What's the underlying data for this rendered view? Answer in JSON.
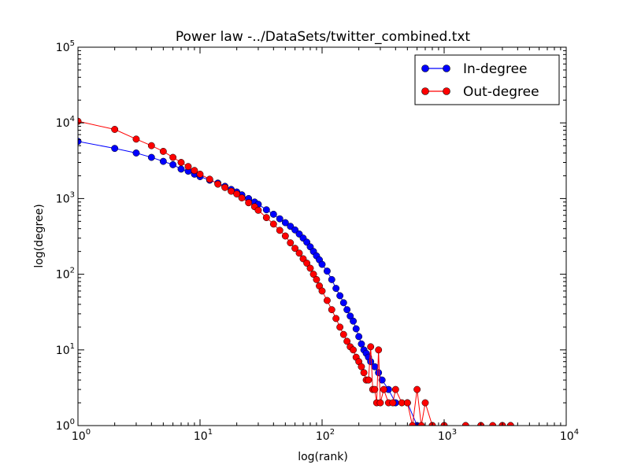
{
  "chart_data": {
    "type": "line",
    "title": "Power law -../DataSets/twitter_combined.txt",
    "xlabel": "log(rank)",
    "ylabel": "log(degree)",
    "xscale": "log",
    "yscale": "log",
    "xlim": [
      1,
      10000
    ],
    "ylim": [
      1,
      100000
    ],
    "x_ticks": [
      {
        "value": 1,
        "base": "10",
        "exp": "0"
      },
      {
        "value": 10,
        "base": "10",
        "exp": "1"
      },
      {
        "value": 100,
        "base": "10",
        "exp": "2"
      },
      {
        "value": 1000,
        "base": "10",
        "exp": "3"
      },
      {
        "value": 10000,
        "base": "10",
        "exp": "4"
      }
    ],
    "y_ticks": [
      {
        "value": 1,
        "base": "10",
        "exp": "0"
      },
      {
        "value": 10,
        "base": "10",
        "exp": "1"
      },
      {
        "value": 100,
        "base": "10",
        "exp": "2"
      },
      {
        "value": 1000,
        "base": "10",
        "exp": "3"
      },
      {
        "value": 10000,
        "base": "10",
        "exp": "4"
      },
      {
        "value": 100000,
        "base": "10",
        "exp": "5"
      }
    ],
    "grid": false,
    "legend_position": "top-right",
    "series": [
      {
        "name": "In-degree",
        "color": "#0000ff",
        "marker": "circle",
        "points": [
          [
            1,
            5700
          ],
          [
            2,
            4600
          ],
          [
            3,
            4000
          ],
          [
            4,
            3500
          ],
          [
            5,
            3100
          ],
          [
            6,
            2800
          ],
          [
            7,
            2450
          ],
          [
            8,
            2300
          ],
          [
            9,
            2100
          ],
          [
            10,
            1950
          ],
          [
            12,
            1750
          ],
          [
            14,
            1600
          ],
          [
            16,
            1450
          ],
          [
            18,
            1320
          ],
          [
            20,
            1220
          ],
          [
            22,
            1120
          ],
          [
            25,
            1000
          ],
          [
            28,
            900
          ],
          [
            30,
            840
          ],
          [
            35,
            710
          ],
          [
            40,
            620
          ],
          [
            45,
            540
          ],
          [
            50,
            480
          ],
          [
            55,
            430
          ],
          [
            60,
            385
          ],
          [
            65,
            340
          ],
          [
            70,
            300
          ],
          [
            75,
            265
          ],
          [
            80,
            230
          ],
          [
            85,
            200
          ],
          [
            90,
            175
          ],
          [
            95,
            155
          ],
          [
            100,
            135
          ],
          [
            110,
            110
          ],
          [
            120,
            85
          ],
          [
            130,
            65
          ],
          [
            140,
            52
          ],
          [
            150,
            42
          ],
          [
            160,
            34
          ],
          [
            170,
            28
          ],
          [
            180,
            24
          ],
          [
            190,
            19
          ],
          [
            200,
            15
          ],
          [
            210,
            12
          ],
          [
            220,
            10
          ],
          [
            230,
            9
          ],
          [
            240,
            8
          ],
          [
            250,
            7
          ],
          [
            270,
            6
          ],
          [
            290,
            5
          ],
          [
            310,
            4
          ],
          [
            350,
            3
          ],
          [
            400,
            2
          ],
          [
            500,
            2
          ],
          [
            600,
            1
          ],
          [
            800,
            1
          ],
          [
            1000,
            1
          ],
          [
            1500,
            1
          ],
          [
            2000,
            1
          ],
          [
            3000,
            1
          ],
          [
            3500,
            1
          ]
        ]
      },
      {
        "name": "Out-degree",
        "color": "#ff0000",
        "marker": "circle",
        "points": [
          [
            1,
            10500
          ],
          [
            2,
            8200
          ],
          [
            3,
            6100
          ],
          [
            4,
            5000
          ],
          [
            5,
            4200
          ],
          [
            6,
            3500
          ],
          [
            7,
            3000
          ],
          [
            8,
            2650
          ],
          [
            9,
            2350
          ],
          [
            10,
            2100
          ],
          [
            12,
            1800
          ],
          [
            14,
            1550
          ],
          [
            16,
            1400
          ],
          [
            18,
            1250
          ],
          [
            20,
            1150
          ],
          [
            22,
            1020
          ],
          [
            25,
            880
          ],
          [
            28,
            780
          ],
          [
            30,
            700
          ],
          [
            35,
            560
          ],
          [
            40,
            460
          ],
          [
            45,
            380
          ],
          [
            50,
            320
          ],
          [
            55,
            260
          ],
          [
            60,
            220
          ],
          [
            65,
            190
          ],
          [
            70,
            160
          ],
          [
            75,
            140
          ],
          [
            80,
            120
          ],
          [
            85,
            100
          ],
          [
            90,
            85
          ],
          [
            95,
            70
          ],
          [
            100,
            60
          ],
          [
            110,
            45
          ],
          [
            120,
            34
          ],
          [
            130,
            26
          ],
          [
            140,
            20
          ],
          [
            150,
            16
          ],
          [
            160,
            13
          ],
          [
            170,
            11
          ],
          [
            180,
            10
          ],
          [
            190,
            8
          ],
          [
            200,
            7
          ],
          [
            210,
            6
          ],
          [
            220,
            5
          ],
          [
            230,
            4
          ],
          [
            240,
            4
          ],
          [
            250,
            11
          ],
          [
            260,
            3
          ],
          [
            270,
            3
          ],
          [
            280,
            2
          ],
          [
            290,
            10
          ],
          [
            300,
            2
          ],
          [
            320,
            3
          ],
          [
            350,
            2
          ],
          [
            380,
            2
          ],
          [
            400,
            3
          ],
          [
            450,
            2
          ],
          [
            500,
            2
          ],
          [
            550,
            1
          ],
          [
            600,
            3
          ],
          [
            650,
            1
          ],
          [
            700,
            2
          ],
          [
            800,
            1
          ],
          [
            1000,
            1
          ],
          [
            1500,
            1
          ],
          [
            2000,
            1
          ],
          [
            2500,
            1
          ],
          [
            3000,
            1
          ],
          [
            3500,
            1
          ]
        ]
      }
    ]
  }
}
